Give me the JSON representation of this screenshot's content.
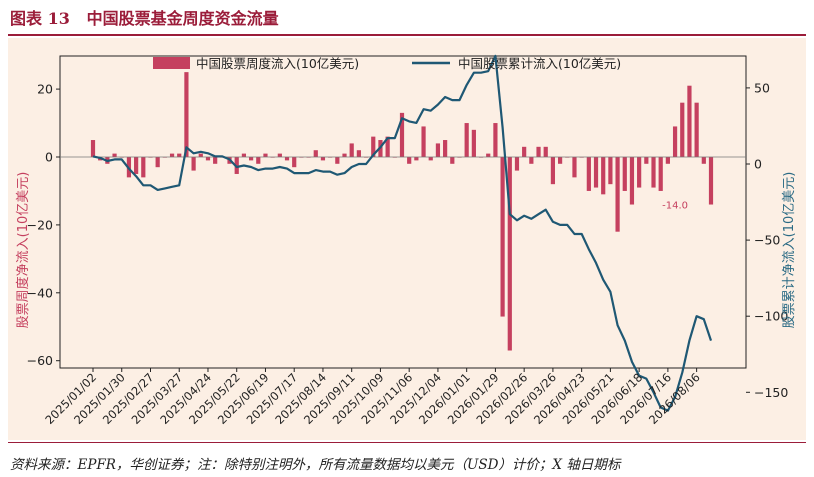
{
  "header": {
    "figure_label": "图表 13",
    "title": "中国股票基金周度资金流量"
  },
  "footer": {
    "source": "资料来源：EPFR，华创证券；注：除特别注明外，所有流量数据均以美元（USD）计价；X 轴日期标"
  },
  "colors": {
    "bar": "#c5405f",
    "line": "#1f5874",
    "panel_bg": "#fcefe4",
    "title": "#9b1d3a",
    "ylabel_left": "#c5405f",
    "ylabel_right": "#2a6a84"
  },
  "chart_data": {
    "type": "bar+line",
    "title": "",
    "x_tick_labels": [
      "2025/01/02",
      "2025/01/30",
      "2025/02/27",
      "2025/03/27",
      "2025/04/24",
      "2025/05/22",
      "2025/06/19",
      "2025/07/17",
      "2025/08/14",
      "2025/09/11",
      "2025/10/09",
      "2025/11/06",
      "2025/12/04",
      "2026/01/01",
      "2026/01/29",
      "2026/02/26",
      "2026/03/26",
      "2026/04/23",
      "2026/05/21",
      "2026/06/18",
      "2026/07/16",
      "2026/08/06"
    ],
    "ylabel_left": "股票周度净流入(10亿美元)",
    "ylabel_right": "股票累计净流入(10亿美元)",
    "ylim_left": [
      -62,
      30
    ],
    "ylim_right": [
      -170,
      70
    ],
    "yticks_left": [
      20,
      0,
      -20,
      -40,
      -60
    ],
    "yticks_right": [
      50,
      0,
      -50,
      -100,
      -150
    ],
    "legend_position": "top",
    "grid": false,
    "annotation": {
      "text": "-14.0",
      "week_index": 81,
      "value": -14.0
    },
    "series": [
      {
        "name": "中国股票周度流入(10亿美元)",
        "type": "bar",
        "axis": "left",
        "values": [
          5,
          -1,
          -2,
          1,
          0,
          -6,
          -5,
          -6,
          0,
          -3,
          0,
          1,
          1,
          25,
          -4,
          1,
          -1,
          -2,
          0,
          -2,
          -5,
          1,
          -1,
          -2,
          1,
          0,
          1,
          -1,
          -3,
          0,
          0,
          2,
          -1,
          0,
          -2,
          1,
          4,
          2,
          0,
          6,
          5,
          6,
          0,
          13,
          -2,
          -1,
          9,
          -1,
          4,
          5,
          -2,
          0,
          10,
          8,
          0,
          1,
          10,
          -47,
          -57,
          -4,
          3,
          -2,
          3,
          3,
          -8,
          -2,
          0,
          -6,
          0,
          -10,
          -9,
          -11,
          -8,
          -22,
          -10,
          -14,
          -9,
          -2,
          -9,
          -10,
          -2,
          9,
          16,
          21,
          16,
          -2,
          -14
        ]
      },
      {
        "name": "中国股票累计流入(10亿美元)",
        "type": "line",
        "axis": "right",
        "values": [
          5,
          4,
          2,
          3,
          3,
          -3,
          -8,
          -14,
          -14,
          -17,
          -16,
          -15,
          -14,
          11,
          7,
          8,
          7,
          5,
          5,
          3,
          -2,
          -1,
          -2,
          -4,
          -3,
          -3,
          -2,
          -3,
          -6,
          -6,
          -6,
          -4,
          -5,
          -5,
          -7,
          -6,
          -2,
          0,
          0,
          6,
          11,
          17,
          17,
          30,
          28,
          27,
          36,
          35,
          39,
          44,
          42,
          42,
          52,
          60,
          60,
          61,
          71,
          24,
          -33,
          -37,
          -34,
          -36,
          -33,
          -30,
          -38,
          -40,
          -40,
          -46,
          -46,
          -56,
          -65,
          -76,
          -84,
          -106,
          -116,
          -130,
          -139,
          -141,
          -150,
          -160,
          -162,
          -153,
          -137,
          -116,
          -100,
          -102,
          -116
        ]
      }
    ]
  }
}
